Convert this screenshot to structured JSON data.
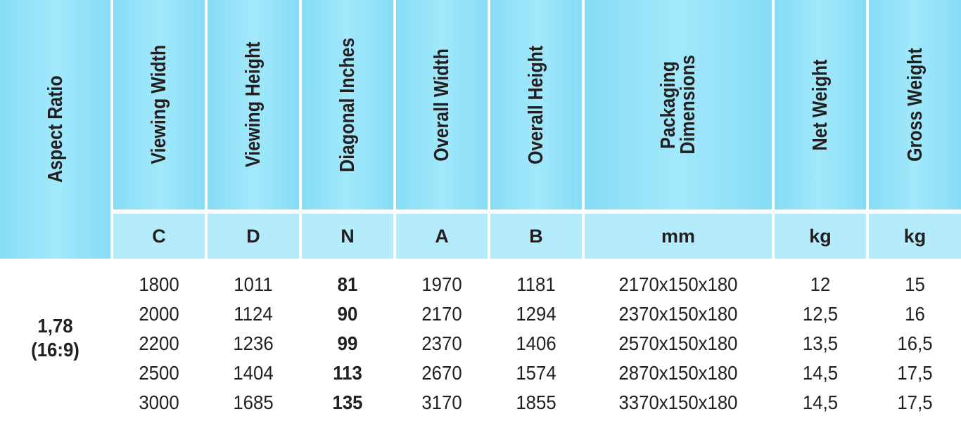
{
  "table": {
    "header": {
      "aspect_ratio": "Aspect Ratio",
      "columns": [
        {
          "label": "Viewing Width",
          "unit": "C"
        },
        {
          "label": "Viewing Height",
          "unit": "D"
        },
        {
          "label": "Diagonal Inches",
          "unit": "N"
        },
        {
          "label": "Overall Width",
          "unit": "A"
        },
        {
          "label": "Overall Height",
          "unit": "B"
        },
        {
          "label": "Packaging Dimensions",
          "unit": "mm"
        },
        {
          "label": "Net Weight",
          "unit": "kg"
        },
        {
          "label": "Gross Weight",
          "unit": "kg"
        }
      ]
    },
    "aspect_ratio_value": [
      "1,78",
      "(16:9)"
    ],
    "rows": [
      [
        "1800",
        "1011",
        "81",
        "1970",
        "1181",
        "2170x150x180",
        "12",
        "15"
      ],
      [
        "2000",
        "1124",
        "90",
        "2170",
        "1294",
        "2370x150x180",
        "12,5",
        "16"
      ],
      [
        "2200",
        "1236",
        "99",
        "2370",
        "1406",
        "2570x150x180",
        "13,5",
        "16,5"
      ],
      [
        "2500",
        "1404",
        "113",
        "2670",
        "1574",
        "2870x150x180",
        "14,5",
        "17,5"
      ],
      [
        "3000",
        "1685",
        "135",
        "3170",
        "1855",
        "3370x150x180",
        "14,5",
        "17,5"
      ]
    ]
  }
}
